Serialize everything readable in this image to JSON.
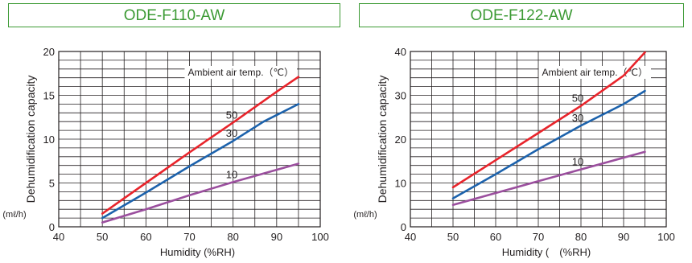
{
  "chart_data": [
    {
      "type": "line",
      "title": "ODE-F110-AW",
      "xlabel": "Humidity (%RH)",
      "ylabel": "Dehumidification capacity",
      "yunit": "(mℓ/h)",
      "legend_title": "Ambient air temp.（℃）",
      "xlim": [
        40,
        100
      ],
      "ylim": [
        0,
        20
      ],
      "xticks": [
        "40",
        "50",
        "60",
        "70",
        "80",
        "90",
        "100"
      ],
      "yticks": [
        "0",
        "5",
        "10",
        "15",
        "20"
      ],
      "grid": true,
      "series": [
        {
          "name": "50",
          "color": "#e8242b",
          "x": [
            50,
            60,
            70,
            80,
            90,
            95
          ],
          "y": [
            1.5,
            5.0,
            8.5,
            11.9,
            15.4,
            17.1
          ]
        },
        {
          "name": "30",
          "color": "#1c62ac",
          "x": [
            50,
            60,
            70,
            80,
            87,
            95
          ],
          "y": [
            1.0,
            3.9,
            6.9,
            9.8,
            12.0,
            14.0
          ]
        },
        {
          "name": "10",
          "color": "#9b4f9e",
          "x": [
            50,
            60,
            70,
            80,
            95
          ],
          "y": [
            0.5,
            2.0,
            3.6,
            5.1,
            7.2
          ]
        }
      ]
    },
    {
      "type": "line",
      "title": "ODE-F122-AW",
      "xlabel": "Humidity (　(%RH)",
      "ylabel": "Dehumidification capacity",
      "yunit": "(mℓ/h)",
      "legend_title": "Ambient air temp.（℃）",
      "xlim": [
        40,
        100
      ],
      "ylim": [
        0,
        40
      ],
      "xticks": [
        "40",
        "50",
        "60",
        "70",
        "80",
        "90",
        "100"
      ],
      "yticks": [
        "0",
        "10",
        "20",
        "30",
        "40"
      ],
      "grid": true,
      "series": [
        {
          "name": "50",
          "color": "#e8242b",
          "x": [
            50,
            60,
            70,
            80,
            90,
            95
          ],
          "y": [
            9.0,
            15.2,
            21.4,
            27.6,
            34.5,
            39.8
          ]
        },
        {
          "name": "30",
          "color": "#1c62ac",
          "x": [
            50,
            60,
            70,
            80,
            90,
            95
          ],
          "y": [
            6.5,
            12.0,
            17.7,
            23.1,
            28.0,
            31.0
          ]
        },
        {
          "name": "10",
          "color": "#9b4f9e",
          "x": [
            50,
            60,
            70,
            80,
            95
          ],
          "y": [
            5.0,
            7.7,
            10.4,
            13.1,
            17.1
          ]
        }
      ]
    }
  ]
}
